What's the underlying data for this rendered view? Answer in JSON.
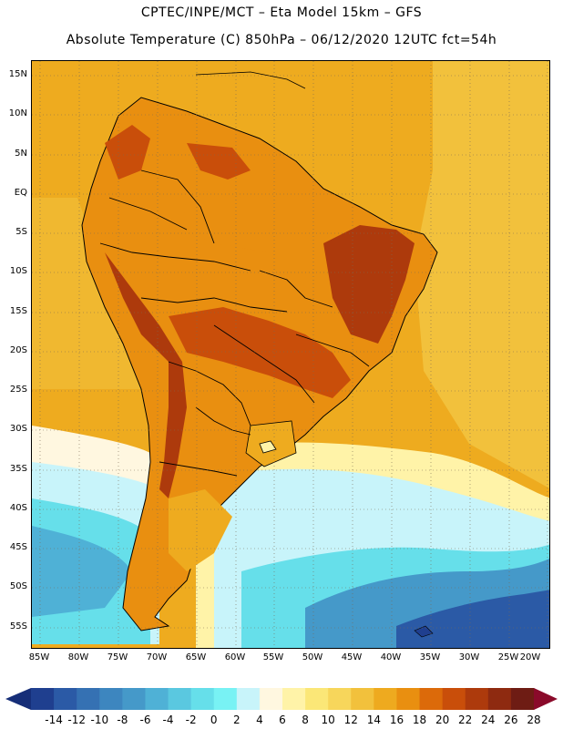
{
  "header": {
    "line1": "CPTEC/INPE/MCT –   Eta Model 15km – GFS",
    "line2": "Absolute Temperature (C) 850hPa – 06/12/2020 12UTC fct=54h"
  },
  "axes": {
    "lat_labels": [
      "15N",
      "10N",
      "5N",
      "EQ",
      "5S",
      "10S",
      "15S",
      "20S",
      "25S",
      "30S",
      "35S",
      "40S",
      "45S",
      "50S",
      "55S"
    ],
    "lon_labels": [
      "85W",
      "80W",
      "75W",
      "70W",
      "65W",
      "60W",
      "55W",
      "50W",
      "45W",
      "40W",
      "35W",
      "30W",
      "25W",
      "20W"
    ]
  },
  "colorbar": {
    "labels": [
      "-14",
      "-12",
      "-10",
      "-8",
      "-6",
      "-4",
      "-2",
      "0",
      "2",
      "4",
      "6",
      "8",
      "10",
      "12",
      "14",
      "16",
      "18",
      "20",
      "22",
      "24",
      "26",
      "28"
    ],
    "colors": [
      "#1f3f8f",
      "#2b5aa6",
      "#3571b3",
      "#3d86bf",
      "#4599c9",
      "#4fb1d6",
      "#5ac8e0",
      "#66dfea",
      "#78f2f4",
      "#c8f4fa",
      "#fff7e0",
      "#fff3a8",
      "#fbe777",
      "#f7d65b",
      "#f2c13c",
      "#eeaa1f",
      "#e98f10",
      "#dc6a0a",
      "#c94e0a",
      "#ad3a0c",
      "#8e2a10",
      "#6e1c14"
    ],
    "below_color": "#162e78",
    "above_color": "#8a0a2a"
  },
  "map_colors": {
    "ocean_warm": "#eeab1f",
    "ocean_mid": "#f2c13c",
    "land_hot": "#c94e0a",
    "land_very_hot": "#ad3a0c",
    "land_warm": "#e98f10",
    "cool": "#c8f4fa",
    "cold": "#5ac8e0",
    "colder": "#4599c9",
    "coldest": "#2b5aa6",
    "pale": "#fff3a8",
    "coast": "#000000"
  }
}
